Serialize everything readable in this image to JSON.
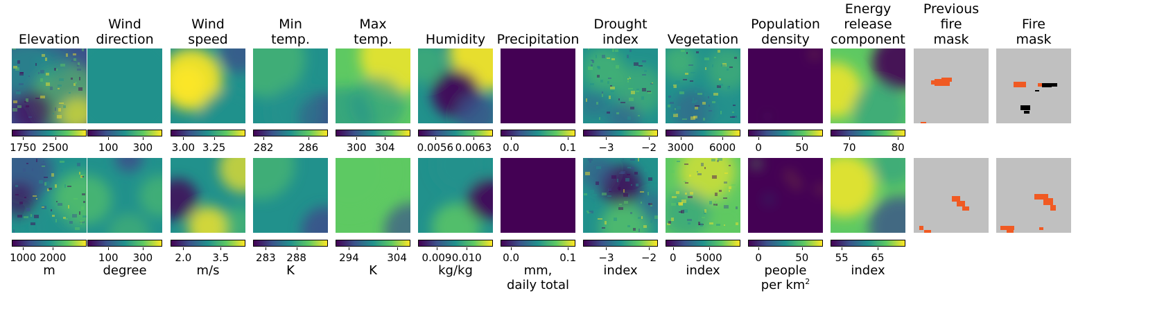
{
  "colormap": "viridis",
  "viridis_stops": [
    "#440154",
    "#3b528b",
    "#21918c",
    "#5ec962",
    "#fde725"
  ],
  "fire_colors": {
    "background": "#c0c0c0",
    "fire": "#f05a23",
    "unlabeled": "#000000"
  },
  "columns": [
    {
      "key": "elevation",
      "title": [
        "Elevation"
      ],
      "unit": [
        "m"
      ],
      "row1_ticks": [
        "1750",
        "2500"
      ],
      "row2_ticks": [
        "1000",
        "2000"
      ]
    },
    {
      "key": "wind_direction",
      "title": [
        "Wind",
        "direction"
      ],
      "unit": [
        "degree"
      ],
      "row1_ticks": [
        "100",
        "300"
      ],
      "row2_ticks": [
        "100",
        "300"
      ]
    },
    {
      "key": "wind_speed",
      "title": [
        "Wind",
        "speed"
      ],
      "unit": [
        "m/s"
      ],
      "row1_ticks": [
        "3.00",
        "3.25"
      ],
      "row2_ticks": [
        "2.0",
        "3.5"
      ]
    },
    {
      "key": "min_temp",
      "title": [
        "Min",
        "temp."
      ],
      "unit": [
        "K"
      ],
      "row1_ticks": [
        "282",
        "286"
      ],
      "row2_ticks": [
        "283",
        "288"
      ]
    },
    {
      "key": "max_temp",
      "title": [
        "Max",
        "temp."
      ],
      "unit": [
        "K"
      ],
      "row1_ticks": [
        "300",
        "304"
      ],
      "row2_ticks": [
        "294",
        "304"
      ]
    },
    {
      "key": "humidity",
      "title": [
        "Humidity"
      ],
      "unit": [
        "kg/kg"
      ],
      "row1_ticks": [
        "0.0056",
        "0.0063"
      ],
      "row2_ticks": [
        "0.009",
        "0.010"
      ]
    },
    {
      "key": "precipitation",
      "title": [
        "Precipitation"
      ],
      "unit": [
        "mm,",
        "daily total"
      ],
      "row1_ticks": [
        "0.0",
        "0.1"
      ],
      "row2_ticks": [
        "0.0",
        "0.1"
      ]
    },
    {
      "key": "drought_index",
      "title": [
        "Drought",
        "index"
      ],
      "unit": [
        "index"
      ],
      "row1_ticks": [
        "−3",
        "−2"
      ],
      "row2_ticks": [
        "−3",
        "−2"
      ]
    },
    {
      "key": "vegetation",
      "title": [
        "Vegetation"
      ],
      "unit": [
        "index"
      ],
      "row1_ticks": [
        "3000",
        "6000"
      ],
      "row2_ticks": [
        "0",
        "5000"
      ]
    },
    {
      "key": "population_density",
      "title": [
        "Population",
        "density"
      ],
      "unit": [
        "people",
        "per km²"
      ],
      "row1_ticks": [
        "0",
        "50"
      ],
      "row2_ticks": [
        "0",
        "50"
      ]
    },
    {
      "key": "energy_release",
      "title": [
        "Energy",
        "release",
        "component"
      ],
      "unit": [
        "index"
      ],
      "row1_ticks": [
        "70",
        "80"
      ],
      "row2_ticks": [
        "55",
        "65"
      ]
    },
    {
      "key": "previous_fire_mask",
      "title": [
        "Previous",
        "fire",
        "mask"
      ],
      "unit": [],
      "row1_ticks": [],
      "row2_ticks": []
    },
    {
      "key": "fire_mask",
      "title": [
        "Fire",
        "mask"
      ],
      "unit": [],
      "row1_ticks": [],
      "row2_ticks": []
    }
  ],
  "chart_data": {
    "type": "heatmap",
    "rows": 2,
    "row1_tick_values": {
      "elevation": [
        1750,
        2500
      ],
      "wind_direction": [
        100,
        300
      ],
      "wind_speed": [
        3.0,
        3.25
      ],
      "min_temp": [
        282,
        286
      ],
      "max_temp": [
        300,
        304
      ],
      "humidity": [
        0.0056,
        0.0063
      ],
      "precipitation": [
        0.0,
        0.1
      ],
      "drought_index": [
        -3,
        -2
      ],
      "vegetation": [
        3000,
        6000
      ],
      "population_density": [
        0,
        50
      ],
      "energy_release": [
        70,
        80
      ]
    },
    "row2_tick_values": {
      "elevation": [
        1000,
        2000
      ],
      "wind_direction": [
        100,
        300
      ],
      "wind_speed": [
        2.0,
        3.5
      ],
      "min_temp": [
        283,
        288
      ],
      "max_temp": [
        294,
        304
      ],
      "humidity": [
        0.009,
        0.01
      ],
      "precipitation": [
        0.0,
        0.1
      ],
      "drought_index": [
        -3,
        -2
      ],
      "vegetation": [
        0,
        5000
      ],
      "population_density": [
        0,
        50
      ],
      "energy_release": [
        55,
        65
      ]
    }
  }
}
